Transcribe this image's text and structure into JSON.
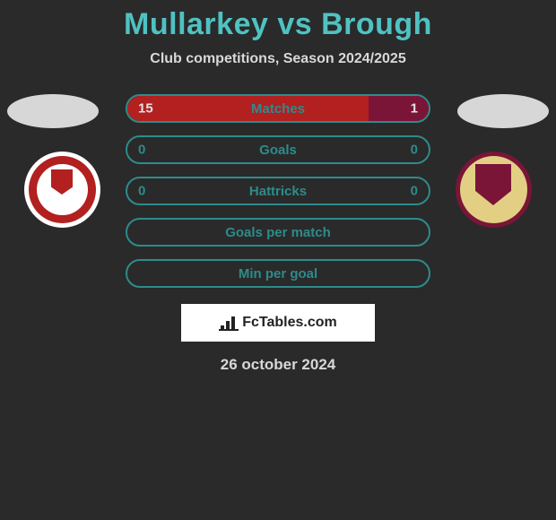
{
  "title": "Mullarkey vs Brough",
  "subtitle": "Club competitions, Season 2024/2025",
  "colors": {
    "title": "#4fc2c2",
    "subtitle": "#d8d8d8",
    "bar_border": "#2e8b8b",
    "bar_text": "#2e8b8b",
    "left_fill": "#b22020",
    "right_fill": "#7a1538",
    "bar_value_on_fill": "#e2e2e2",
    "ellipse": "#d7d7d7",
    "logo_bg": "#ffffff",
    "logo_text": "#222222",
    "date": "#d8d8d8"
  },
  "bars": [
    {
      "label": "Matches",
      "left_val": "15",
      "right_val": "1",
      "left_pct": 80,
      "right_pct": 20,
      "show_vals": true
    },
    {
      "label": "Goals",
      "left_val": "0",
      "right_val": "0",
      "left_pct": 0,
      "right_pct": 0,
      "show_vals": true
    },
    {
      "label": "Hattricks",
      "left_val": "0",
      "right_val": "0",
      "left_pct": 0,
      "right_pct": 0,
      "show_vals": true
    },
    {
      "label": "Goals per match",
      "left_val": "",
      "right_val": "",
      "left_pct": 0,
      "right_pct": 0,
      "show_vals": false
    },
    {
      "label": "Min per goal",
      "left_val": "",
      "right_val": "",
      "left_pct": 0,
      "right_pct": 0,
      "show_vals": false
    }
  ],
  "logo_text": "FcTables.com",
  "date": "26 october 2024"
}
